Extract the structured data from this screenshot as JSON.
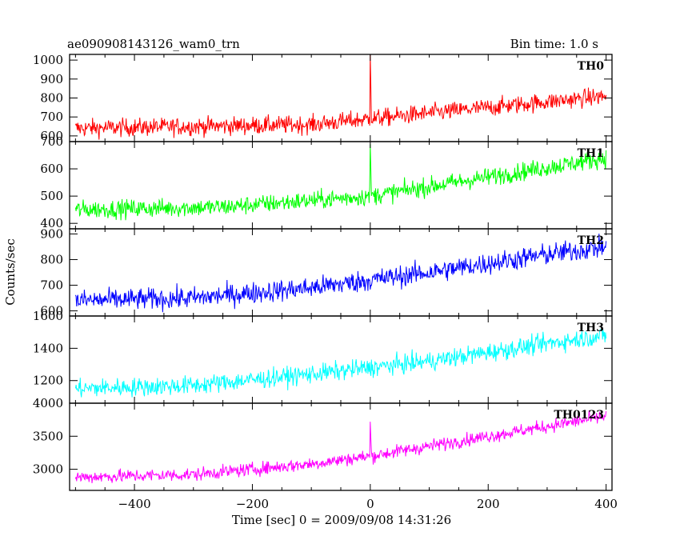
{
  "header": {
    "title": "ae090908143126_wam0_trn",
    "bin_time": "Bin time: 1.0 s"
  },
  "axes": {
    "xlabel": "Time [sec] 0 = 2009/09/08 14:31:26",
    "ylabel": "Counts/sec"
  },
  "chart_data": {
    "type": "line",
    "title": "ae090908143126_wam0_trn",
    "subtitle": "Bin time: 1.0 s",
    "xlabel": "Time [sec] 0 = 2009/09/08 14:31:26",
    "ylabel": "Counts/sec",
    "xlim": [
      -510,
      410
    ],
    "x_ticks": [
      -400,
      -200,
      0,
      200,
      400
    ],
    "x_range": [
      -500,
      400
    ],
    "bin_time": 1.0,
    "grid": false,
    "legend": "none",
    "series": [
      {
        "name": "TH0",
        "color": "#ff0000",
        "ylim": [
          570,
          1030
        ],
        "y_ticks": [
          600,
          700,
          800,
          900,
          1000
        ],
        "trend_x": [
          -500,
          -100,
          0,
          100,
          300,
          400
        ],
        "trend_y": [
          640,
          660,
          690,
          720,
          780,
          810
        ],
        "noise_amplitude": 45,
        "spike": {
          "x": 0,
          "y": 1030
        }
      },
      {
        "name": "TH1",
        "color": "#00ff00",
        "ylim": [
          380,
          700
        ],
        "y_ticks": [
          400,
          500,
          600,
          700
        ],
        "trend_x": [
          -500,
          -250,
          0,
          200,
          400
        ],
        "trend_y": [
          450,
          460,
          500,
          570,
          640
        ],
        "noise_amplitude": 32,
        "spike": {
          "x": 0,
          "y": 690
        }
      },
      {
        "name": "TH2",
        "color": "#0000ff",
        "ylim": [
          580,
          920
        ],
        "y_ticks": [
          600,
          700,
          800,
          900
        ],
        "trend_x": [
          -500,
          -300,
          -100,
          100,
          300,
          400
        ],
        "trend_y": [
          640,
          650,
          690,
          750,
          820,
          850
        ],
        "noise_amplitude": 40,
        "spike": null
      },
      {
        "name": "TH3",
        "color": "#00ffff",
        "ylim": [
          1060,
          1600
        ],
        "y_ticks": [
          1200,
          1400,
          1600
        ],
        "trend_x": [
          -500,
          -300,
          -100,
          100,
          300,
          400
        ],
        "trend_y": [
          1150,
          1170,
          1240,
          1320,
          1430,
          1480
        ],
        "noise_amplitude": 55,
        "spike": null
      },
      {
        "name": "TH0123",
        "color": "#ff00ff",
        "ylim": [
          2680,
          4000
        ],
        "y_ticks": [
          3000,
          3500,
          4000
        ],
        "trend_x": [
          -500,
          -300,
          -100,
          0,
          100,
          300,
          400
        ],
        "trend_y": [
          2880,
          2920,
          3080,
          3200,
          3350,
          3650,
          3800
        ],
        "noise_amplitude": 95,
        "spike": {
          "x": 0,
          "y": 3720
        }
      }
    ]
  }
}
